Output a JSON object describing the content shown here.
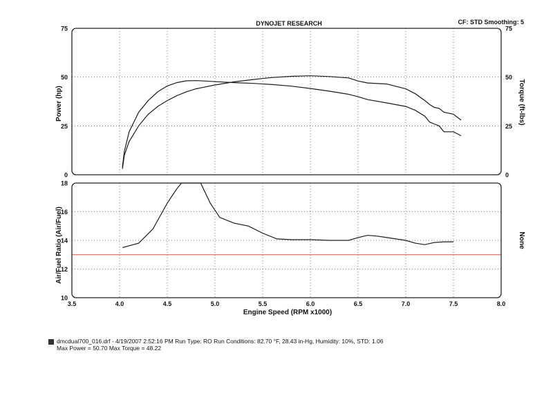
{
  "header": {
    "title": "DYNOJET RESEARCH",
    "corner": "CF: STD  Smoothing: 5"
  },
  "footer": {
    "run_info": "dmcdual700_016.drf - 4/19/2007 2:52:16 PM  Run Type: RO  Run Conditions: 82.70 °F, 28.43 in-Hg,  Humidity:  10%, STD: 1.06",
    "max_values": "Max Power = 50.70  Max Torque = 48.22"
  },
  "chart_data": [
    {
      "type": "line",
      "panel": "power-torque",
      "ylabel": "Power (hp)",
      "y2label": "Torque (ft-lbs)",
      "xlim": [
        3.5,
        8.0
      ],
      "ylim": [
        0,
        75
      ],
      "y2lim": [
        0,
        75
      ],
      "yticks": [
        0,
        25,
        50,
        75
      ],
      "grid": true,
      "series": [
        {
          "role": "power",
          "x": [
            4.03,
            4.05,
            4.1,
            4.2,
            4.3,
            4.4,
            4.5,
            4.6,
            4.7,
            4.8,
            4.9,
            5.0,
            5.2,
            5.4,
            5.6,
            5.8,
            6.0,
            6.2,
            6.4,
            6.5,
            6.6,
            6.8,
            7.0,
            7.1,
            7.2,
            7.25,
            7.3,
            7.35,
            7.4,
            7.5,
            7.58
          ],
          "y": [
            3,
            10,
            17,
            25,
            31,
            35,
            38,
            40.5,
            42.5,
            44,
            45,
            46,
            47.6,
            48.8,
            49.8,
            50.4,
            50.7,
            50.3,
            49.6,
            48,
            47,
            46.5,
            44,
            41.5,
            38,
            36,
            34.5,
            34,
            32,
            31,
            28
          ]
        },
        {
          "role": "torque",
          "x": [
            4.03,
            4.05,
            4.1,
            4.2,
            4.3,
            4.4,
            4.5,
            4.6,
            4.7,
            4.8,
            4.9,
            5.0,
            5.2,
            5.4,
            5.6,
            5.8,
            6.0,
            6.2,
            6.4,
            6.5,
            6.6,
            6.8,
            7.0,
            7.1,
            7.2,
            7.25,
            7.3,
            7.35,
            7.4,
            7.5,
            7.58
          ],
          "y": [
            4,
            12,
            22,
            32,
            38,
            42.5,
            45.5,
            47.2,
            48.1,
            48.22,
            48,
            47.7,
            47.2,
            46.8,
            46.2,
            45.4,
            44.2,
            42.8,
            41.2,
            40,
            38.5,
            36.8,
            35,
            33,
            30,
            27,
            26,
            25,
            22,
            22,
            20
          ]
        }
      ]
    },
    {
      "type": "line",
      "panel": "air-fuel",
      "title": "",
      "xlabel": "Engine Speed (RPM x1000)",
      "ylabel": "Air/Fuel Ratio (Air/Fuel)",
      "y2label": "None",
      "xlim": [
        3.5,
        8.0
      ],
      "ylim": [
        10,
        18
      ],
      "xticks": [
        3.5,
        4.0,
        4.5,
        5.0,
        5.5,
        6.0,
        6.5,
        7.0,
        7.5,
        8.0
      ],
      "yticks": [
        10,
        12,
        14,
        16,
        18
      ],
      "grid": true,
      "reference_line": {
        "y": 13.0,
        "color": "#d9534f"
      },
      "series": [
        {
          "role": "afr",
          "x": [
            4.03,
            4.2,
            4.35,
            4.5,
            4.6,
            4.65,
            4.85,
            4.95,
            5.05,
            5.2,
            5.35,
            5.5,
            5.65,
            5.8,
            6.0,
            6.2,
            6.4,
            6.5,
            6.6,
            6.7,
            6.8,
            7.0,
            7.1,
            7.2,
            7.3,
            7.4,
            7.5
          ],
          "y": [
            13.5,
            13.8,
            14.8,
            16.6,
            17.6,
            18.0,
            18.0,
            16.6,
            15.6,
            15.2,
            15.0,
            14.5,
            14.1,
            14.05,
            14.05,
            14.0,
            14.0,
            14.2,
            14.35,
            14.3,
            14.2,
            14.0,
            13.8,
            13.7,
            13.85,
            13.9,
            13.9
          ]
        }
      ]
    }
  ]
}
